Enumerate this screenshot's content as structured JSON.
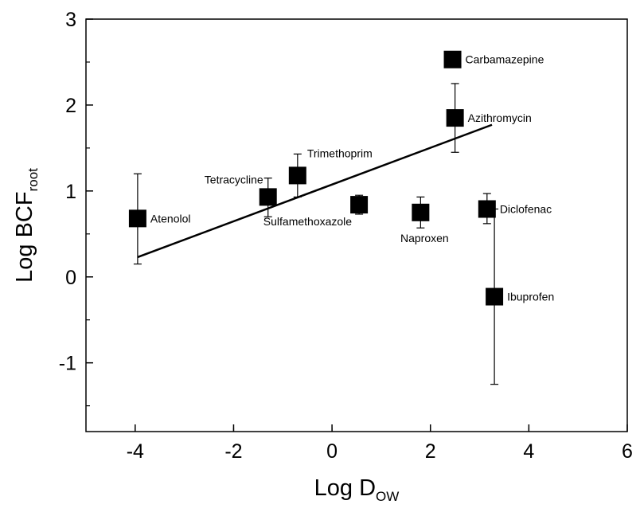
{
  "chart_data": {
    "type": "scatter",
    "title": "",
    "xlabel_main": "Log D",
    "xlabel_sub": "OW",
    "ylabel_main": "Log BCF",
    "ylabel_sub": "root",
    "xlim": [
      -5,
      6
    ],
    "ylim": [
      -1.8,
      3
    ],
    "xticks": [
      -4,
      -2,
      0,
      2,
      4,
      6
    ],
    "yticks": [
      -1,
      0,
      1,
      2,
      3
    ],
    "xtick_labels": [
      "-4",
      "-2",
      "0",
      "2",
      "4",
      "6"
    ],
    "ytick_labels": [
      "-1",
      "0",
      "1",
      "2",
      "3"
    ],
    "grid": false,
    "marker_color": "#000000",
    "points": [
      {
        "label": "Atenolol",
        "x": -3.95,
        "y": 0.68,
        "err_low": 0.15,
        "err_high": 1.2,
        "label_pos": "right"
      },
      {
        "label": "Tetracycline",
        "x": -1.3,
        "y": 0.93,
        "err_low": 0.7,
        "err_high": 1.15,
        "label_pos": "upper-left"
      },
      {
        "label": "Trimethoprim",
        "x": -0.7,
        "y": 1.18,
        "err_low": 0.93,
        "err_high": 1.43,
        "label_pos": "upper-right"
      },
      {
        "label": "Sulfamethoxazole",
        "x": 0.55,
        "y": 0.84,
        "err_low": 0.73,
        "err_high": 0.95,
        "label_pos": "lower-left"
      },
      {
        "label": "Naproxen",
        "x": 1.8,
        "y": 0.75,
        "err_low": 0.57,
        "err_high": 0.93,
        "label_pos": "lower"
      },
      {
        "label": "Carbamazepine",
        "x": 2.45,
        "y": 2.53,
        "err_low": 2.45,
        "err_high": 2.61,
        "label_pos": "right"
      },
      {
        "label": "Azithromycin",
        "x": 2.5,
        "y": 1.85,
        "err_low": 1.45,
        "err_high": 2.25,
        "label_pos": "right"
      },
      {
        "label": "Diclofenac",
        "x": 3.15,
        "y": 0.79,
        "err_low": 0.62,
        "err_high": 0.97,
        "label_pos": "right"
      },
      {
        "label": "Ibuprofen",
        "x": 3.3,
        "y": -0.23,
        "err_low": -1.25,
        "err_high": 0.79,
        "label_pos": "right"
      }
    ],
    "regression_line": {
      "x1": -3.95,
      "y1": 0.23,
      "x2": 3.25,
      "y2": 1.77
    }
  }
}
